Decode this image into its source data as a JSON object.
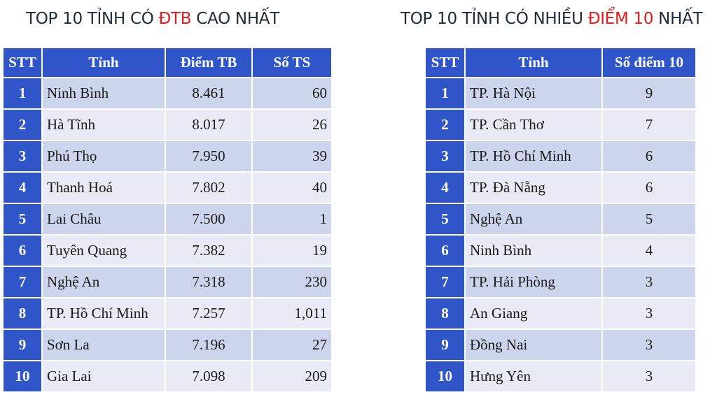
{
  "left": {
    "title_pre": "TOP 10 TỈNH CÓ ",
    "title_hl": "ĐTB",
    "title_post": " CAO NHẤT",
    "headers": [
      "STT",
      "Tỉnh",
      "Điểm TB",
      "Số TS"
    ],
    "rows": [
      {
        "stt": "1",
        "province": "Ninh Bình",
        "score": "8.461",
        "count": "60"
      },
      {
        "stt": "2",
        "province": "Hà Tĩnh",
        "score": "8.017",
        "count": "26"
      },
      {
        "stt": "3",
        "province": "Phú Thọ",
        "score": "7.950",
        "count": "39"
      },
      {
        "stt": "4",
        "province": "Thanh Hoá",
        "score": "7.802",
        "count": "40"
      },
      {
        "stt": "5",
        "province": "Lai Châu",
        "score": "7.500",
        "count": "1"
      },
      {
        "stt": "6",
        "province": "Tuyên Quang",
        "score": "7.382",
        "count": "19"
      },
      {
        "stt": "7",
        "province": "Nghệ An",
        "score": "7.318",
        "count": "230"
      },
      {
        "stt": "8",
        "province": "TP. Hồ Chí Minh",
        "score": "7.257",
        "count": "1,011"
      },
      {
        "stt": "9",
        "province": "Sơn La",
        "score": "7.196",
        "count": "27"
      },
      {
        "stt": "10",
        "province": "Gia Lai",
        "score": "7.098",
        "count": "209"
      }
    ]
  },
  "right": {
    "title_pre": "TOP 10 TỈNH CÓ NHIỀU ",
    "title_hl": "ĐIỂM 10",
    "title_post": " NHẤT",
    "headers": [
      "STT",
      "Tỉnh",
      "Số điểm 10"
    ],
    "rows": [
      {
        "stt": "1",
        "province": "TP. Hà Nội",
        "tens": "9"
      },
      {
        "stt": "2",
        "province": "TP. Cần Thơ",
        "tens": "7"
      },
      {
        "stt": "3",
        "province": "TP. Hồ Chí Minh",
        "tens": "6"
      },
      {
        "stt": "4",
        "province": "TP. Đà Nẵng",
        "tens": "6"
      },
      {
        "stt": "5",
        "province": "Nghệ An",
        "tens": "5"
      },
      {
        "stt": "6",
        "province": "Ninh Bình",
        "tens": "4"
      },
      {
        "stt": "7",
        "province": "TP. Hải Phòng",
        "tens": "3"
      },
      {
        "stt": "8",
        "province": "An Giang",
        "tens": "3"
      },
      {
        "stt": "9",
        "province": "Đồng Nai",
        "tens": "3"
      },
      {
        "stt": "10",
        "province": "Hưng Yên",
        "tens": "3"
      }
    ]
  },
  "colors": {
    "header_blue": "#2f55c9",
    "row_dark": "#cdd5ec",
    "row_light": "#e8ebf6",
    "highlight_red": "#e01c1c",
    "title_text": "#1f2a3a"
  }
}
